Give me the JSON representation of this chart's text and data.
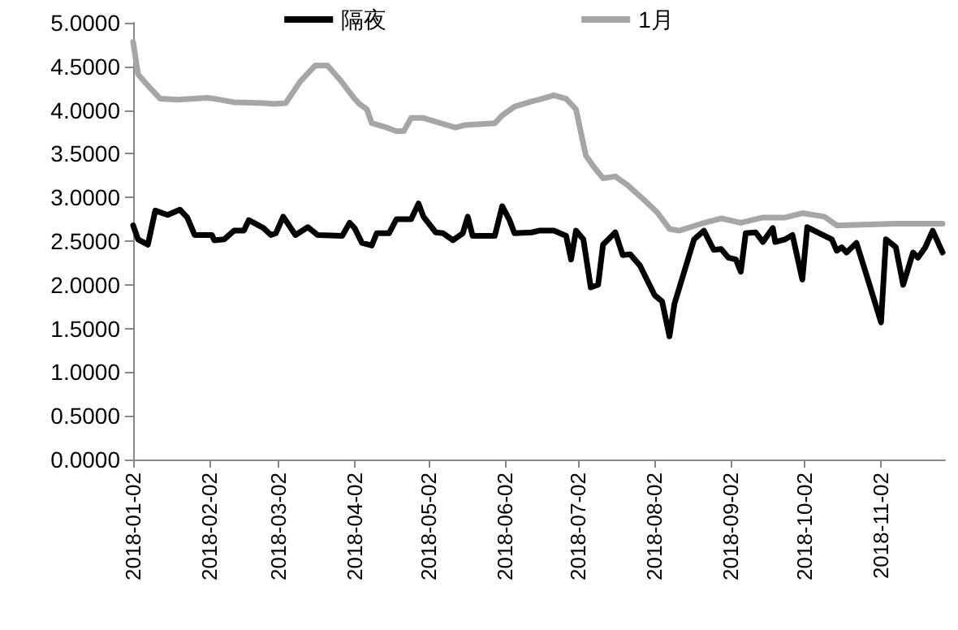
{
  "chart_data": {
    "type": "line",
    "legend": "top",
    "grid": false,
    "marker": "none",
    "line_style": "solid",
    "ylim": [
      0,
      5
    ],
    "yticks": [
      {
        "value": 0,
        "label": "0.0000"
      },
      {
        "value": 0.5,
        "label": "0.5000"
      },
      {
        "value": 1,
        "label": "1.0000"
      },
      {
        "value": 1.5,
        "label": "1.5000"
      },
      {
        "value": 2,
        "label": "2.0000"
      },
      {
        "value": 2.5,
        "label": "2.5000"
      },
      {
        "value": 3,
        "label": "3.0000"
      },
      {
        "value": 3.5,
        "label": "3.5000"
      },
      {
        "value": 4,
        "label": "4.0000"
      },
      {
        "value": 4.5,
        "label": "4.5000"
      },
      {
        "value": 5,
        "label": "5.0000"
      }
    ],
    "xlim": [
      "2018-01-02",
      "2018-11-28"
    ],
    "xticks": [
      "2018-01-02",
      "2018-02-02",
      "2018-03-02",
      "2018-04-02",
      "2018-05-02",
      "2018-06-02",
      "2018-07-02",
      "2018-08-02",
      "2018-09-02",
      "2018-10-02",
      "2018-11-02"
    ],
    "series": [
      {
        "name": "隔夜",
        "color": "#000000",
        "x": [
          "2018-01-02",
          "2018-01-04",
          "2018-01-08",
          "2018-01-11",
          "2018-01-16",
          "2018-01-21",
          "2018-01-24",
          "2018-01-27",
          "2018-02-03",
          "2018-02-04",
          "2018-02-08",
          "2018-02-12",
          "2018-02-16",
          "2018-02-18",
          "2018-02-24",
          "2018-02-27",
          "2018-03-01",
          "2018-03-04",
          "2018-03-09",
          "2018-03-14",
          "2018-03-18",
          "2018-03-28",
          "2018-03-31",
          "2018-04-02",
          "2018-04-05",
          "2018-04-09",
          "2018-04-11",
          "2018-04-16",
          "2018-04-19",
          "2018-04-25",
          "2018-04-28",
          "2018-04-30",
          "2018-05-05",
          "2018-05-08",
          "2018-05-12",
          "2018-05-16",
          "2018-05-18",
          "2018-05-20",
          "2018-05-29",
          "2018-06-01",
          "2018-06-04",
          "2018-06-06",
          "2018-06-13",
          "2018-06-16",
          "2018-06-22",
          "2018-06-27",
          "2018-06-29",
          "2018-07-01",
          "2018-07-04",
          "2018-07-07",
          "2018-07-10",
          "2018-07-12",
          "2018-07-17",
          "2018-07-20",
          "2018-07-23",
          "2018-07-27",
          "2018-08-02",
          "2018-08-05",
          "2018-08-08",
          "2018-08-10",
          "2018-08-18",
          "2018-08-22",
          "2018-08-26",
          "2018-08-29",
          "2018-09-01",
          "2018-09-04",
          "2018-09-06",
          "2018-09-08",
          "2018-09-12",
          "2018-09-15",
          "2018-09-19",
          "2018-09-20",
          "2018-09-24",
          "2018-09-27",
          "2018-10-01",
          "2018-10-03",
          "2018-10-08",
          "2018-10-13",
          "2018-10-15",
          "2018-10-17",
          "2018-10-19",
          "2018-10-23",
          "2018-10-27",
          "2018-11-02",
          "2018-11-04",
          "2018-11-08",
          "2018-11-11",
          "2018-11-15",
          "2018-11-17",
          "2018-11-20",
          "2018-11-23",
          "2018-11-27"
        ],
        "values": [
          2.68,
          2.52,
          2.46,
          2.85,
          2.8,
          2.86,
          2.77,
          2.57,
          2.57,
          2.51,
          2.52,
          2.62,
          2.62,
          2.74,
          2.65,
          2.57,
          2.59,
          2.78,
          2.57,
          2.66,
          2.57,
          2.56,
          2.71,
          2.65,
          2.48,
          2.45,
          2.59,
          2.59,
          2.75,
          2.75,
          2.93,
          2.78,
          2.6,
          2.59,
          2.51,
          2.59,
          2.78,
          2.56,
          2.56,
          2.9,
          2.74,
          2.59,
          2.6,
          2.62,
          2.62,
          2.56,
          2.29,
          2.62,
          2.52,
          1.97,
          2.0,
          2.46,
          2.6,
          2.34,
          2.35,
          2.22,
          1.88,
          1.81,
          1.41,
          1.78,
          2.52,
          2.62,
          2.4,
          2.41,
          2.31,
          2.29,
          2.15,
          2.59,
          2.6,
          2.49,
          2.65,
          2.49,
          2.52,
          2.57,
          2.06,
          2.66,
          2.59,
          2.52,
          2.39,
          2.43,
          2.37,
          2.48,
          2.12,
          1.57,
          2.52,
          2.43,
          2.0,
          2.37,
          2.31,
          2.43,
          2.62,
          2.37
        ]
      },
      {
        "name": "1月",
        "color": "#a6a6a6",
        "x": [
          "2018-01-02",
          "2018-01-04",
          "2018-01-08",
          "2018-01-13",
          "2018-01-20",
          "2018-02-01",
          "2018-02-04",
          "2018-02-12",
          "2018-02-24",
          "2018-02-28",
          "2018-03-05",
          "2018-03-11",
          "2018-03-17",
          "2018-03-22",
          "2018-03-27",
          "2018-04-02",
          "2018-04-04",
          "2018-04-07",
          "2018-04-09",
          "2018-04-14",
          "2018-04-19",
          "2018-04-22",
          "2018-04-25",
          "2018-04-30",
          "2018-05-07",
          "2018-05-13",
          "2018-05-17",
          "2018-05-29",
          "2018-06-01",
          "2018-06-06",
          "2018-06-13",
          "2018-06-16",
          "2018-06-22",
          "2018-06-27",
          "2018-07-01",
          "2018-07-05",
          "2018-07-08",
          "2018-07-12",
          "2018-07-17",
          "2018-07-22",
          "2018-07-28",
          "2018-08-03",
          "2018-08-08",
          "2018-08-12",
          "2018-08-21",
          "2018-08-29",
          "2018-09-06",
          "2018-09-15",
          "2018-09-24",
          "2018-10-01",
          "2018-10-10",
          "2018-10-15",
          "2018-10-28",
          "2018-11-08",
          "2018-11-27"
        ],
        "values": [
          4.78,
          4.41,
          4.28,
          4.13,
          4.12,
          4.14,
          4.13,
          4.09,
          4.08,
          4.07,
          4.08,
          4.33,
          4.51,
          4.51,
          4.35,
          4.13,
          4.07,
          4.01,
          3.85,
          3.81,
          3.76,
          3.76,
          3.91,
          3.91,
          3.85,
          3.8,
          3.83,
          3.85,
          3.94,
          4.04,
          4.1,
          4.12,
          4.17,
          4.13,
          4.01,
          3.48,
          3.36,
          3.22,
          3.24,
          3.14,
          2.99,
          2.83,
          2.64,
          2.62,
          2.7,
          2.76,
          2.71,
          2.77,
          2.77,
          2.82,
          2.78,
          2.68,
          2.69,
          2.7,
          2.7
        ]
      }
    ]
  }
}
